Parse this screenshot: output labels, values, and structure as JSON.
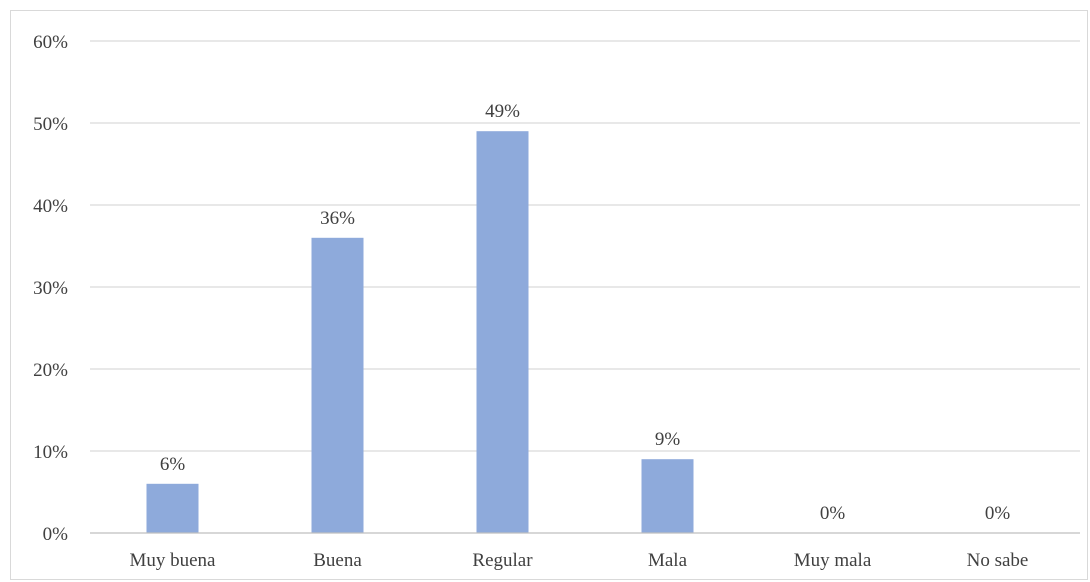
{
  "chart_data": {
    "type": "bar",
    "title": "",
    "xlabel": "",
    "ylabel": "",
    "categories": [
      "Muy buena",
      "Buena",
      "Regular",
      "Mala",
      "Muy mala",
      "No sabe"
    ],
    "values": [
      6,
      36,
      49,
      9,
      0,
      0
    ],
    "value_labels": [
      "6%",
      "36%",
      "49%",
      "9%",
      "0%",
      "0%"
    ],
    "ylim": [
      0,
      60
    ],
    "y_ticks": [
      0,
      10,
      20,
      30,
      40,
      50,
      60
    ],
    "y_tick_labels": [
      "0%",
      "10%",
      "20%",
      "30%",
      "40%",
      "50%",
      "60%"
    ],
    "grid": true,
    "legend": "none",
    "bar_color": "#8eaadb",
    "grid_color": "#d9d9d9",
    "text_color": "#404040"
  }
}
